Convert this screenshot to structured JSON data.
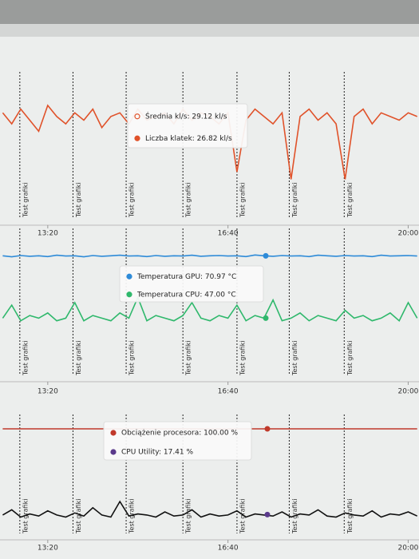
{
  "chart_data": [
    {
      "type": "line",
      "x": [
        750,
        760,
        770,
        780,
        790,
        800,
        810,
        820,
        830,
        840,
        850,
        860,
        870,
        880,
        890,
        900,
        910,
        920,
        930,
        940,
        950,
        960,
        970,
        980,
        990,
        1000,
        1010,
        1020,
        1030,
        1040,
        1050,
        1060,
        1070,
        1080,
        1090,
        1100,
        1110,
        1120,
        1130,
        1140,
        1150,
        1160,
        1170,
        1180,
        1190,
        1200,
        1210
      ],
      "series": [
        {
          "color": "#e0522a",
          "values": [
            30,
            27,
            31,
            28,
            25,
            32,
            29,
            27,
            30,
            28,
            31,
            26,
            29,
            30,
            27,
            31,
            28,
            29,
            30,
            27,
            31,
            28,
            30,
            29,
            27,
            30,
            14,
            28,
            31,
            29,
            27,
            30,
            12,
            29,
            31,
            28,
            30,
            27,
            12,
            29,
            31,
            27,
            30,
            29,
            28,
            30,
            29
          ]
        }
      ],
      "xlim": [
        747,
        1212
      ],
      "ylim": [
        0,
        40
      ],
      "xticks": [
        {
          "value": 800,
          "label": "13:20"
        },
        {
          "value": 1000,
          "label": "16:40"
        },
        {
          "value": 1200,
          "label": "20:00"
        }
      ],
      "event_label": "Test grafiki",
      "events": [
        769,
        828,
        887,
        950,
        1010,
        1068,
        1129
      ],
      "tooltip": [
        {
          "label": "Średnia kl/s: 29.12 kl/s",
          "value": 29.12,
          "color": "#e0522a",
          "marker": "hollow"
        },
        {
          "label": "Liczba klatek: 26.82 kl/s",
          "value": 26.82,
          "color": "#e0522a",
          "marker": "filled"
        }
      ]
    },
    {
      "type": "line",
      "x": [
        750,
        760,
        770,
        780,
        790,
        800,
        810,
        820,
        830,
        840,
        850,
        860,
        870,
        880,
        890,
        900,
        910,
        920,
        930,
        940,
        950,
        960,
        970,
        980,
        990,
        1000,
        1010,
        1020,
        1030,
        1040,
        1050,
        1060,
        1070,
        1080,
        1090,
        1100,
        1110,
        1120,
        1130,
        1140,
        1150,
        1160,
        1170,
        1180,
        1190,
        1200,
        1210
      ],
      "series": [
        {
          "color": "#2e8bd8",
          "values": [
            71,
            70.6,
            71.1,
            70.8,
            71,
            70.7,
            71.2,
            70.9,
            71,
            70.6,
            71.1,
            70.8,
            71,
            71.2,
            70.9,
            71,
            70.7,
            71.1,
            70.8,
            71,
            70.9,
            71.2,
            70.8,
            71,
            71.1,
            70.9,
            71,
            70.7,
            71.3,
            71,
            70.8,
            71.1,
            70.9,
            71,
            70.7,
            71.2,
            71,
            70.8,
            71.1,
            70.9,
            71,
            70.7,
            71.2,
            70.9,
            71,
            71.1,
            70.9
          ]
        },
        {
          "color": "#2fb86c",
          "values": [
            47,
            52,
            46,
            48,
            47,
            49,
            46,
            47,
            53,
            46,
            48,
            47,
            46,
            49,
            47,
            55,
            46,
            48,
            47,
            46,
            48,
            53,
            47,
            46,
            48,
            47,
            52,
            46,
            48,
            47,
            54,
            46,
            47,
            49,
            46,
            48,
            47,
            46,
            50,
            47,
            48,
            46,
            47,
            49,
            46,
            53,
            47
          ]
        }
      ],
      "xlim": [
        747,
        1212
      ],
      "ylim": [
        25,
        80
      ],
      "xticks": [
        {
          "value": 800,
          "label": "13:20"
        },
        {
          "value": 1000,
          "label": "16:40"
        },
        {
          "value": 1200,
          "label": "20:00"
        }
      ],
      "event_label": "Test grafiki",
      "events": [
        769,
        828,
        887,
        950,
        1010,
        1068,
        1129
      ],
      "tooltip": [
        {
          "label": "Temperatura GPU: 70.97 °C",
          "value": 70.97,
          "color": "#2e8bd8",
          "marker": "filled"
        },
        {
          "label": "Temperatura CPU: 47.00 °C",
          "value": 47.0,
          "color": "#2fb86c",
          "marker": "filled"
        }
      ]
    },
    {
      "type": "line",
      "x": [
        750,
        760,
        770,
        780,
        790,
        800,
        810,
        820,
        830,
        840,
        850,
        860,
        870,
        880,
        890,
        900,
        910,
        920,
        930,
        940,
        950,
        960,
        970,
        980,
        990,
        1000,
        1010,
        1020,
        1030,
        1040,
        1050,
        1060,
        1070,
        1080,
        1090,
        1100,
        1110,
        1120,
        1130,
        1140,
        1150,
        1160,
        1170,
        1180,
        1190,
        1200,
        1210
      ],
      "series": [
        {
          "color": "#c0392b",
          "values": [
            100,
            100,
            100,
            100,
            100,
            100,
            100,
            100,
            100,
            100,
            100,
            100,
            100,
            100,
            100,
            100,
            100,
            100,
            100,
            100,
            100,
            100,
            100,
            100,
            100,
            100,
            100,
            100,
            100,
            100,
            100,
            100,
            100,
            100,
            100,
            100,
            100,
            100,
            100,
            100,
            100,
            100,
            100,
            100,
            100,
            100,
            100
          ]
        },
        {
          "color": "#111111",
          "values": [
            17,
            22,
            15,
            18,
            16,
            21,
            17,
            15,
            19,
            16,
            24,
            17,
            15,
            30,
            16,
            18,
            17,
            15,
            20,
            16,
            17,
            22,
            15,
            18,
            16,
            17,
            21,
            15,
            18,
            17,
            16,
            20,
            15,
            18,
            17,
            22,
            16,
            15,
            19,
            17,
            16,
            21,
            15,
            18,
            17,
            20,
            16
          ]
        }
      ],
      "xlim": [
        747,
        1212
      ],
      "ylim": [
        0,
        110
      ],
      "xticks": [
        {
          "value": 800,
          "label": "13:20"
        },
        {
          "value": 1000,
          "label": "16:40"
        },
        {
          "value": 1200,
          "label": "20:00"
        }
      ],
      "event_label": "Test grafiki",
      "events": [
        769,
        828,
        887,
        950,
        1010,
        1068,
        1129
      ],
      "tooltip": [
        {
          "label": "Obciążenie procesora: 100.00 %",
          "value": 100.0,
          "color": "#c0392b",
          "marker": "filled"
        },
        {
          "label": "CPU Utility: 17.41 %",
          "value": 17.41,
          "color": "#5b3a8c",
          "marker": "filled"
        }
      ]
    }
  ]
}
